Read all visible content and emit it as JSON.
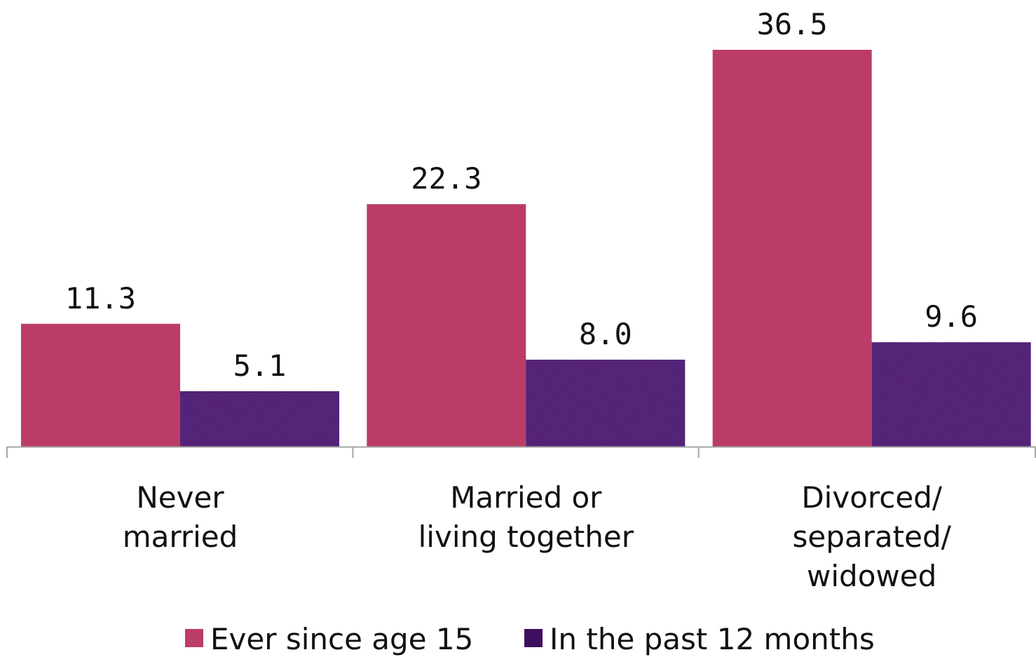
{
  "chart_data": {
    "type": "bar",
    "categories": [
      [
        "Never",
        "married"
      ],
      [
        "Married or",
        "living together"
      ],
      [
        "Divorced/",
        "separated/",
        "widowed"
      ]
    ],
    "series": [
      {
        "name": "Ever since age 15",
        "values": [
          11.3,
          22.3,
          36.5
        ],
        "labels": [
          "11.3",
          "22.3",
          "36.5"
        ],
        "color": "#bc3c68"
      },
      {
        "name": "In the past 12 months",
        "values": [
          5.1,
          8.0,
          9.6
        ],
        "labels": [
          "5.1",
          "8.0",
          "9.6"
        ],
        "color": "#3e0f5e"
      }
    ],
    "ylim": [
      0,
      36.5
    ],
    "grid": false,
    "legend_position": "bottom"
  }
}
